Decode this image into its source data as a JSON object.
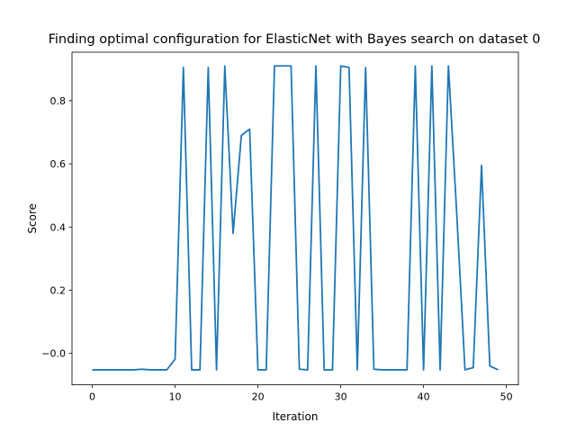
{
  "chart_data": {
    "type": "line",
    "title": "Finding optimal configuration for ElasticNet with Bayes search on dataset 0",
    "xlabel": "Iteration",
    "ylabel": "Score",
    "xlim": [
      -2.45,
      51.45
    ],
    "ylim": [
      -0.0995,
      0.9535
    ],
    "xticks": [
      0,
      10,
      20,
      30,
      40,
      50
    ],
    "yticks": [
      0.0,
      0.2,
      0.4,
      0.6,
      0.8
    ],
    "xtick_labels": [
      "0",
      "10",
      "20",
      "30",
      "40",
      "50"
    ],
    "ytick_labels": [
      "−0.0",
      "0.2",
      "0.4",
      "0.6",
      "0.8"
    ],
    "grid": false,
    "line_color": "#1f77b4",
    "series": [
      {
        "x": [
          0,
          1,
          2,
          3,
          4,
          5,
          6,
          7,
          8,
          9,
          10,
          11,
          12,
          13,
          14,
          15,
          16,
          17,
          18,
          19,
          20,
          21,
          22,
          23,
          24,
          25,
          26,
          27,
          28,
          29,
          30,
          31,
          32,
          33,
          34,
          35,
          36,
          37,
          38,
          39,
          40,
          41,
          42,
          43,
          44,
          45,
          46,
          47,
          48,
          49
        ],
        "values": [
          -0.052,
          -0.052,
          -0.052,
          -0.052,
          -0.052,
          -0.052,
          -0.05,
          -0.052,
          -0.052,
          -0.052,
          -0.018,
          0.905,
          -0.052,
          -0.052,
          0.905,
          -0.052,
          0.91,
          0.38,
          0.69,
          0.71,
          -0.052,
          -0.052,
          0.91,
          0.91,
          0.91,
          -0.05,
          -0.052,
          0.91,
          -0.052,
          -0.052,
          0.91,
          0.905,
          -0.052,
          0.905,
          -0.05,
          -0.052,
          -0.052,
          -0.052,
          -0.052,
          0.91,
          -0.052,
          0.91,
          -0.052,
          0.91,
          0.445,
          -0.052,
          -0.045,
          0.595,
          -0.04,
          -0.052
        ]
      }
    ]
  }
}
